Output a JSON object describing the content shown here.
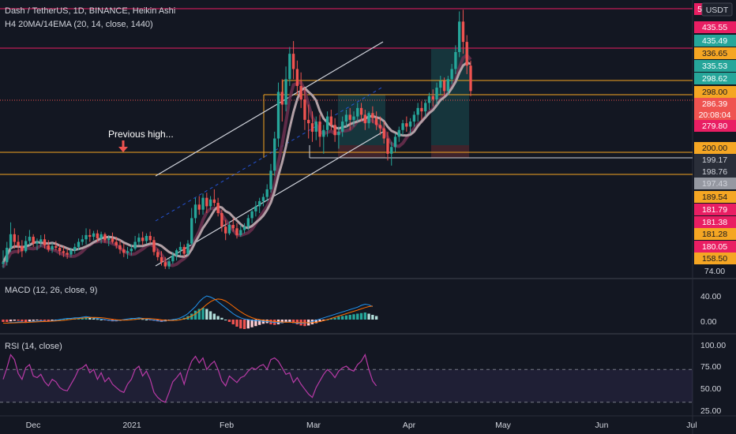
{
  "header": {
    "title": "Dash / TetherUS, 1D, BINANCE, Heikin Ashi",
    "indicator": "H4 20MA/14EMA (20, 14, close, 1440)",
    "currency": "USDT"
  },
  "annotation": "Previous high...",
  "colors": {
    "background": "#131722",
    "up": "#26a69a",
    "down": "#ef5350",
    "ma": "#b2a0a6",
    "ema": "#6d2f4f",
    "resistance": "#f5a623",
    "magenta": "#e91e63",
    "rsi": "#b83aa6",
    "macd": "#2196f3",
    "signal": "#ff6d00"
  },
  "price_tags": [
    {
      "label": "435.55",
      "color": "#e91e63"
    },
    {
      "label": "435.49",
      "color": "#26a69a"
    },
    {
      "label": "336.65",
      "color": "#f5a623"
    },
    {
      "label": "335.53",
      "color": "#26a69a"
    },
    {
      "label": "298.62",
      "color": "#26a69a"
    },
    {
      "label": "298.00",
      "color": "#f5a623"
    },
    {
      "label": "286.39",
      "color": "#ef5350"
    },
    {
      "label": "20:08:04",
      "color": "#ef5350"
    },
    {
      "label": "279.80",
      "color": "#e91e63"
    },
    {
      "label": "200.00",
      "color": "#f5a623"
    },
    {
      "label": "199.17",
      "color": "#2a2e39"
    },
    {
      "label": "198.76",
      "color": "#2a2e39"
    },
    {
      "label": "197.43",
      "color": "#9598a1"
    },
    {
      "label": "189.54",
      "color": "#f5a623"
    },
    {
      "label": "181.79",
      "color": "#e91e63"
    },
    {
      "label": "181.38",
      "color": "#e91e63"
    },
    {
      "label": "181.28",
      "color": "#f5a623"
    },
    {
      "label": "180.05",
      "color": "#e91e63"
    },
    {
      "label": "158.50",
      "color": "#f5a623"
    }
  ],
  "axis_price_label": "74.00",
  "top_tag": "5",
  "macd": {
    "label": "MACD (12, 26, close, 9)",
    "ticks": [
      "40.00",
      "0.00"
    ]
  },
  "rsi": {
    "label": "RSI (14, close)",
    "ticks": [
      "100.00",
      "75.00",
      "50.00",
      "25.00"
    ]
  },
  "x_labels": [
    "Dec",
    "2021",
    "Feb",
    "Mar",
    "Apr",
    "May",
    "Jun",
    "Jul"
  ],
  "chart_data": {
    "type": "candlestick",
    "title": "Dash / TetherUS, 1D, BINANCE, Heikin Ashi",
    "ylabel": "USDT",
    "horizontal_levels": [
      336.65,
      298.0,
      200.0,
      189.54
    ],
    "candles": [
      [
        82,
        98,
        77,
        84
      ],
      [
        84,
        108,
        80,
        101
      ],
      [
        101,
        131,
        96,
        117
      ],
      [
        117,
        124,
        100,
        108
      ],
      [
        108,
        116,
        94,
        103
      ],
      [
        103,
        110,
        90,
        97
      ],
      [
        97,
        115,
        95,
        109
      ],
      [
        109,
        122,
        104,
        114
      ],
      [
        114,
        117,
        102,
        106
      ],
      [
        106,
        112,
        98,
        108
      ],
      [
        108,
        116,
        102,
        111
      ],
      [
        111,
        117,
        100,
        104
      ],
      [
        104,
        110,
        96,
        99
      ],
      [
        99,
        107,
        95,
        103
      ],
      [
        103,
        109,
        98,
        101
      ],
      [
        101,
        105,
        92,
        97
      ],
      [
        97,
        103,
        90,
        95
      ],
      [
        95,
        100,
        88,
        93
      ],
      [
        93,
        101,
        90,
        98
      ],
      [
        98,
        106,
        94,
        102
      ],
      [
        102,
        112,
        98,
        108
      ],
      [
        108,
        116,
        104,
        111
      ],
      [
        111,
        124,
        105,
        116
      ],
      [
        116,
        123,
        108,
        114
      ],
      [
        114,
        121,
        110,
        118
      ],
      [
        118,
        122,
        108,
        112
      ],
      [
        112,
        120,
        106,
        117
      ],
      [
        117,
        119,
        107,
        110
      ],
      [
        110,
        116,
        103,
        112
      ],
      [
        112,
        119,
        106,
        108
      ],
      [
        108,
        114,
        100,
        104
      ],
      [
        104,
        110,
        94,
        99
      ],
      [
        99,
        106,
        90,
        95
      ],
      [
        95,
        102,
        88,
        97
      ],
      [
        97,
        105,
        92,
        100
      ],
      [
        100,
        115,
        98,
        108
      ],
      [
        108,
        118,
        104,
        113
      ],
      [
        113,
        120,
        104,
        109
      ],
      [
        109,
        118,
        106,
        115
      ],
      [
        115,
        120,
        106,
        110
      ],
      [
        110,
        114,
        92,
        96
      ],
      [
        96,
        100,
        86,
        90
      ],
      [
        90,
        97,
        80,
        84
      ],
      [
        84,
        90,
        76,
        79
      ],
      [
        79,
        88,
        76,
        85
      ],
      [
        85,
        96,
        82,
        92
      ],
      [
        92,
        100,
        86,
        98
      ],
      [
        98,
        108,
        92,
        102
      ],
      [
        102,
        105,
        90,
        94
      ],
      [
        94,
        110,
        92,
        106
      ],
      [
        106,
        148,
        104,
        136
      ],
      [
        136,
        160,
        130,
        152
      ],
      [
        152,
        162,
        140,
        146
      ],
      [
        146,
        165,
        140,
        160
      ],
      [
        160,
        166,
        142,
        150
      ],
      [
        150,
        162,
        146,
        158
      ],
      [
        158,
        170,
        150,
        154
      ],
      [
        154,
        160,
        138,
        142
      ],
      [
        142,
        146,
        120,
        126
      ],
      [
        126,
        134,
        110,
        118
      ],
      [
        118,
        132,
        116,
        128
      ],
      [
        128,
        136,
        120,
        124
      ],
      [
        124,
        130,
        112,
        116
      ],
      [
        116,
        128,
        114,
        122
      ],
      [
        122,
        130,
        118,
        126
      ],
      [
        126,
        140,
        122,
        136
      ],
      [
        136,
        148,
        130,
        144
      ],
      [
        144,
        156,
        138,
        150
      ],
      [
        150,
        160,
        142,
        156
      ],
      [
        156,
        165,
        150,
        161
      ],
      [
        161,
        176,
        156,
        170
      ],
      [
        170,
        200,
        166,
        192
      ],
      [
        192,
        238,
        186,
        230
      ],
      [
        230,
        296,
        220,
        285
      ],
      [
        285,
        300,
        250,
        270
      ],
      [
        270,
        315,
        262,
        300
      ],
      [
        300,
        338,
        292,
        330
      ],
      [
        330,
        345,
        300,
        312
      ],
      [
        312,
        322,
        282,
        292
      ],
      [
        292,
        308,
        266,
        276
      ],
      [
        276,
        290,
        240,
        252
      ],
      [
        252,
        270,
        230,
        248
      ],
      [
        248,
        262,
        226,
        238
      ],
      [
        238,
        256,
        228,
        250
      ],
      [
        250,
        258,
        220,
        232
      ],
      [
        232,
        246,
        212,
        240
      ],
      [
        240,
        262,
        232,
        256
      ],
      [
        256,
        264,
        240,
        246
      ],
      [
        246,
        254,
        226,
        234
      ],
      [
        234,
        244,
        218,
        238
      ],
      [
        238,
        256,
        232,
        250
      ],
      [
        250,
        264,
        244,
        258
      ],
      [
        258,
        266,
        240,
        252
      ],
      [
        252,
        262,
        244,
        256
      ],
      [
        256,
        272,
        250,
        266
      ],
      [
        266,
        272,
        250,
        258
      ],
      [
        258,
        264,
        240,
        248
      ],
      [
        248,
        262,
        242,
        260
      ],
      [
        260,
        268,
        248,
        254
      ],
      [
        254,
        262,
        240,
        246
      ],
      [
        246,
        256,
        234,
        242
      ],
      [
        242,
        250,
        224,
        230
      ],
      [
        230,
        238,
        204,
        212
      ],
      [
        212,
        226,
        198,
        220
      ],
      [
        220,
        236,
        214,
        232
      ],
      [
        232,
        244,
        226,
        240
      ],
      [
        240,
        252,
        234,
        248
      ],
      [
        248,
        256,
        238,
        244
      ],
      [
        244,
        254,
        236,
        250
      ],
      [
        250,
        262,
        244,
        258
      ],
      [
        258,
        272,
        250,
        266
      ],
      [
        266,
        274,
        252,
        262
      ],
      [
        262,
        276,
        256,
        272
      ],
      [
        272,
        284,
        264,
        280
      ],
      [
        280,
        288,
        268,
        276
      ],
      [
        276,
        296,
        270,
        290
      ],
      [
        290,
        304,
        282,
        298
      ],
      [
        298,
        302,
        280,
        286
      ],
      [
        286,
        304,
        282,
        300
      ],
      [
        300,
        318,
        294,
        312
      ],
      [
        312,
        340,
        306,
        332
      ],
      [
        332,
        380,
        326,
        368
      ],
      [
        368,
        382,
        330,
        344
      ],
      [
        344,
        352,
        306,
        316
      ],
      [
        316,
        322,
        280,
        286
      ]
    ],
    "macd_hist": [
      -4,
      -4,
      -3,
      -2,
      -2,
      -3,
      -4,
      -3,
      -2,
      -1,
      -1,
      -2,
      -3,
      -2,
      -1,
      0,
      1,
      1,
      2,
      2,
      2,
      3,
      4,
      3,
      2,
      1,
      0,
      -1,
      -2,
      -3,
      -3,
      -2,
      -1,
      0,
      1,
      1,
      2,
      1,
      0,
      -1,
      -2,
      -3,
      -4,
      -3,
      -2,
      -1,
      0,
      1,
      3,
      6,
      10,
      15,
      18,
      20,
      18,
      14,
      10,
      6,
      3,
      0,
      -4,
      -8,
      -12,
      -15,
      -16,
      -15,
      -13,
      -11,
      -9,
      -7,
      -6,
      -8,
      -9,
      -8,
      -6,
      -5,
      -4,
      -6,
      -8,
      -10,
      -11,
      -10,
      -8,
      -6,
      -4,
      -2,
      0,
      2,
      3,
      5,
      6,
      7,
      8,
      9,
      10,
      11,
      12,
      10,
      8,
      6
    ],
    "macd_line": [
      -6,
      -6,
      -5,
      -5,
      -4,
      -4,
      -5,
      -4,
      -3,
      -3,
      -2,
      -3,
      -3,
      -2,
      -1,
      0,
      1,
      2,
      2,
      3,
      3,
      4,
      5,
      4,
      3,
      2,
      1,
      0,
      -1,
      -2,
      -2,
      -1,
      0,
      1,
      2,
      2,
      3,
      2,
      1,
      0,
      -1,
      -2,
      -3,
      -2,
      -1,
      0,
      1,
      3,
      6,
      10,
      16,
      22,
      30,
      36,
      40,
      38,
      35,
      30,
      25,
      20,
      15,
      10,
      6,
      3,
      1,
      0,
      -1,
      -2,
      -2,
      -3,
      -3,
      -4,
      -5,
      -5,
      -5,
      -4,
      -4,
      -5,
      -6,
      -6,
      -6,
      -5,
      -3,
      -1,
      1,
      3,
      5,
      7,
      9,
      11,
      13,
      15,
      17,
      19,
      21,
      24,
      26,
      25,
      22
    ],
    "rsi": [
      58,
      72,
      88,
      82,
      65,
      58,
      72,
      76,
      62,
      60,
      64,
      55,
      50,
      58,
      55,
      48,
      45,
      44,
      52,
      60,
      70,
      72,
      76,
      66,
      70,
      58,
      66,
      55,
      60,
      52,
      48,
      44,
      42,
      52,
      58,
      70,
      74,
      62,
      68,
      58,
      42,
      36,
      32,
      30,
      42,
      55,
      60,
      66,
      52,
      68,
      80,
      86,
      78,
      84,
      70,
      76,
      80,
      70,
      56,
      50,
      62,
      58,
      54,
      60,
      62,
      68,
      72,
      70,
      74,
      76,
      70,
      82,
      84,
      80,
      72,
      64,
      66,
      54,
      60,
      52,
      46,
      40,
      36,
      48,
      56,
      64,
      70,
      66,
      60,
      68,
      72,
      74,
      70,
      68,
      76,
      80,
      88,
      70,
      56,
      50
    ]
  }
}
